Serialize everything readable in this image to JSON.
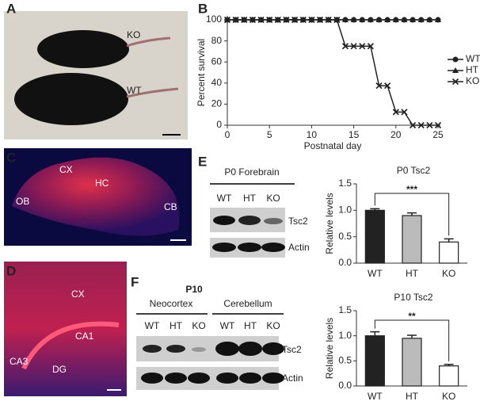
{
  "panel_labels": [
    "A",
    "B",
    "C",
    "D",
    "E",
    "F"
  ],
  "photo_a": {
    "labels": [
      "KO",
      "WT"
    ]
  },
  "photo_c": {
    "labels": [
      "OB",
      "CX",
      "HC",
      "CB"
    ]
  },
  "photo_d": {
    "labels": [
      "CX",
      "CA1",
      "CA3",
      "DG"
    ]
  },
  "blot_e": {
    "title": "P0 Forebrain",
    "lanes": [
      "WT",
      "HT",
      "KO"
    ],
    "rows": [
      "Tsc2",
      "Actin"
    ]
  },
  "blot_f": {
    "title": "P10",
    "groups": [
      "Neocortex",
      "Cerebellum"
    ],
    "lanes": [
      "WT",
      "HT",
      "KO",
      "WT",
      "HT",
      "KO"
    ],
    "rows": [
      "Tsc2",
      "Actin"
    ]
  },
  "chart_data": [
    {
      "type": "line",
      "x_label": "Postnatal day",
      "y_label": "Percent survival",
      "x": [
        0,
        1,
        2,
        3,
        4,
        5,
        6,
        7,
        8,
        9,
        10,
        11,
        12,
        13,
        14,
        15,
        16,
        17,
        18,
        19,
        20,
        21,
        22,
        23,
        24,
        25
      ],
      "series": [
        {
          "name": "WT",
          "color": "#222",
          "marker": "circle",
          "values": [
            100,
            100,
            100,
            100,
            100,
            100,
            100,
            100,
            100,
            100,
            100,
            100,
            100,
            100,
            100,
            100,
            100,
            100,
            100,
            100,
            100,
            100,
            100,
            100,
            100,
            100
          ]
        },
        {
          "name": "HT",
          "color": "#222",
          "marker": "triangle",
          "values": [
            100,
            100,
            100,
            100,
            100,
            100,
            100,
            100,
            100,
            100,
            100,
            100,
            100,
            100,
            100,
            100,
            100,
            100,
            100,
            100,
            100,
            100,
            100,
            100,
            100,
            100
          ]
        },
        {
          "name": "KO",
          "color": "#222",
          "marker": "x",
          "values": [
            100,
            100,
            100,
            100,
            100,
            100,
            100,
            100,
            100,
            100,
            100,
            100,
            100,
            100,
            75,
            75,
            75,
            75,
            37.5,
            37.5,
            12.5,
            12.5,
            0,
            0,
            0,
            0
          ]
        }
      ],
      "xlim": [
        0,
        25
      ],
      "xticks": [
        0,
        5,
        10,
        15,
        20,
        25
      ],
      "ylim": [
        0,
        100
      ],
      "yticks": [
        0,
        20,
        40,
        60,
        80,
        100
      ],
      "legend": "right"
    },
    {
      "type": "bar",
      "title": "P0 Tsc2",
      "y_label": "Relative levels",
      "categories": [
        "WT",
        "HT",
        "KO"
      ],
      "values": [
        1.0,
        0.9,
        0.4
      ],
      "errors": [
        0.03,
        0.05,
        0.06
      ],
      "colors": [
        "#222",
        "#bbb",
        "#fff"
      ],
      "significance": "***",
      "ylim": [
        0,
        1.5
      ],
      "yticks": [
        {
          "value": 0,
          "label": "0.0"
        },
        {
          "value": 0.5,
          "label": "0.5"
        },
        {
          "value": 1,
          "label": "1.0"
        },
        {
          "value": 1.5,
          "label": "1.5"
        }
      ]
    },
    {
      "type": "bar",
      "title": "P10 Tsc2",
      "y_label": "Relative levels",
      "categories": [
        "WT",
        "HT",
        "KO"
      ],
      "values": [
        1.0,
        0.95,
        0.4
      ],
      "errors": [
        0.08,
        0.06,
        0.03
      ],
      "colors": [
        "#222",
        "#bbb",
        "#fff"
      ],
      "significance": "**",
      "ylim": [
        0,
        1.5
      ],
      "yticks": [
        {
          "value": 0,
          "label": "0.0"
        },
        {
          "value": 0.5,
          "label": "0.5"
        },
        {
          "value": 1,
          "label": "1.0"
        },
        {
          "value": 1.5,
          "label": "1.5"
        }
      ]
    }
  ]
}
